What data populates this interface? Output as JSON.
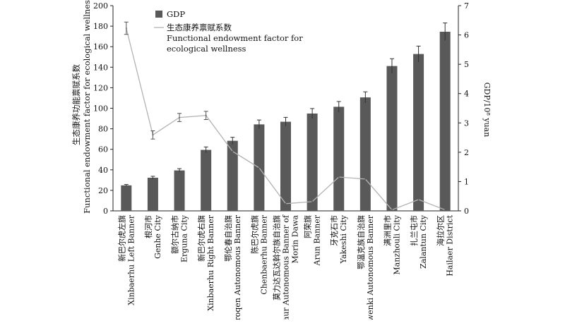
{
  "chart_data": {
    "type": "bar",
    "categories": [
      [
        "新巴尔虎左旗",
        "Xinbaerhu Left Banner"
      ],
      [
        "根河市",
        "Genhe City"
      ],
      [
        "额尔古纳市",
        "Erguna City"
      ],
      [
        "新巴尔虎右旗",
        "Xinbaerhu Right Banner"
      ],
      [
        "鄂伦春自治旗",
        "Oroqen Autonomous Banner"
      ],
      [
        "陈巴尔虎旗",
        "Chenbaerhu Banner"
      ],
      [
        "莫力达瓦达斡尔族自治旗",
        "Daur Autonomous Banner of",
        "Morin Dawa"
      ],
      [
        "阿荣旗",
        "Arun Banner"
      ],
      [
        "牙克石市",
        "Yakeshi City"
      ],
      [
        "鄂温克族自治旗",
        "Ewenki Autonomous Banner"
      ],
      [
        "满洲里市",
        "Manzhouli City"
      ],
      [
        "扎兰屯市",
        "Zalantun City"
      ],
      [
        "海拉尔区",
        "Hailaer District"
      ]
    ],
    "series": [
      {
        "name": "GDP",
        "kind": "bar",
        "axis": "right",
        "color": "#595959",
        "values": [
          0.87,
          1.13,
          1.38,
          2.08,
          2.39,
          2.95,
          3.04,
          3.32,
          3.55,
          3.87,
          4.94,
          5.35,
          6.11
        ],
        "errors": [
          0.03,
          0.05,
          0.06,
          0.1,
          0.12,
          0.15,
          0.15,
          0.17,
          0.18,
          0.19,
          0.25,
          0.27,
          0.3
        ]
      },
      {
        "name_lines": [
          "生态康养禀赋系数",
          "Functional endowment factor for",
          "ecological wellness"
        ],
        "kind": "line",
        "axis": "left",
        "color": "#b3b3b3",
        "values": [
          178,
          74,
          91,
          93,
          58,
          42,
          7,
          9,
          33,
          31,
          1,
          11,
          1
        ],
        "errors": [
          6,
          4,
          4,
          4,
          0,
          0,
          0,
          0,
          0,
          0,
          0,
          0,
          0
        ]
      }
    ],
    "y_left": {
      "label_lines": [
        "生态康养功能禀赋系数",
        "Functional endowment factor for ecological wellness"
      ],
      "lim": [
        0,
        200
      ],
      "ticks": [
        "0",
        "20",
        "40",
        "60",
        "80",
        "100",
        "120",
        "140",
        "160",
        "180",
        "200"
      ]
    },
    "y_right": {
      "label": "GDP/10⁸ yuan",
      "lim": [
        0,
        7
      ],
      "ticks": [
        "0",
        "1",
        "2",
        "3",
        "4",
        "5",
        "6",
        "7"
      ]
    },
    "legend_position": "top-left",
    "grid": false
  }
}
